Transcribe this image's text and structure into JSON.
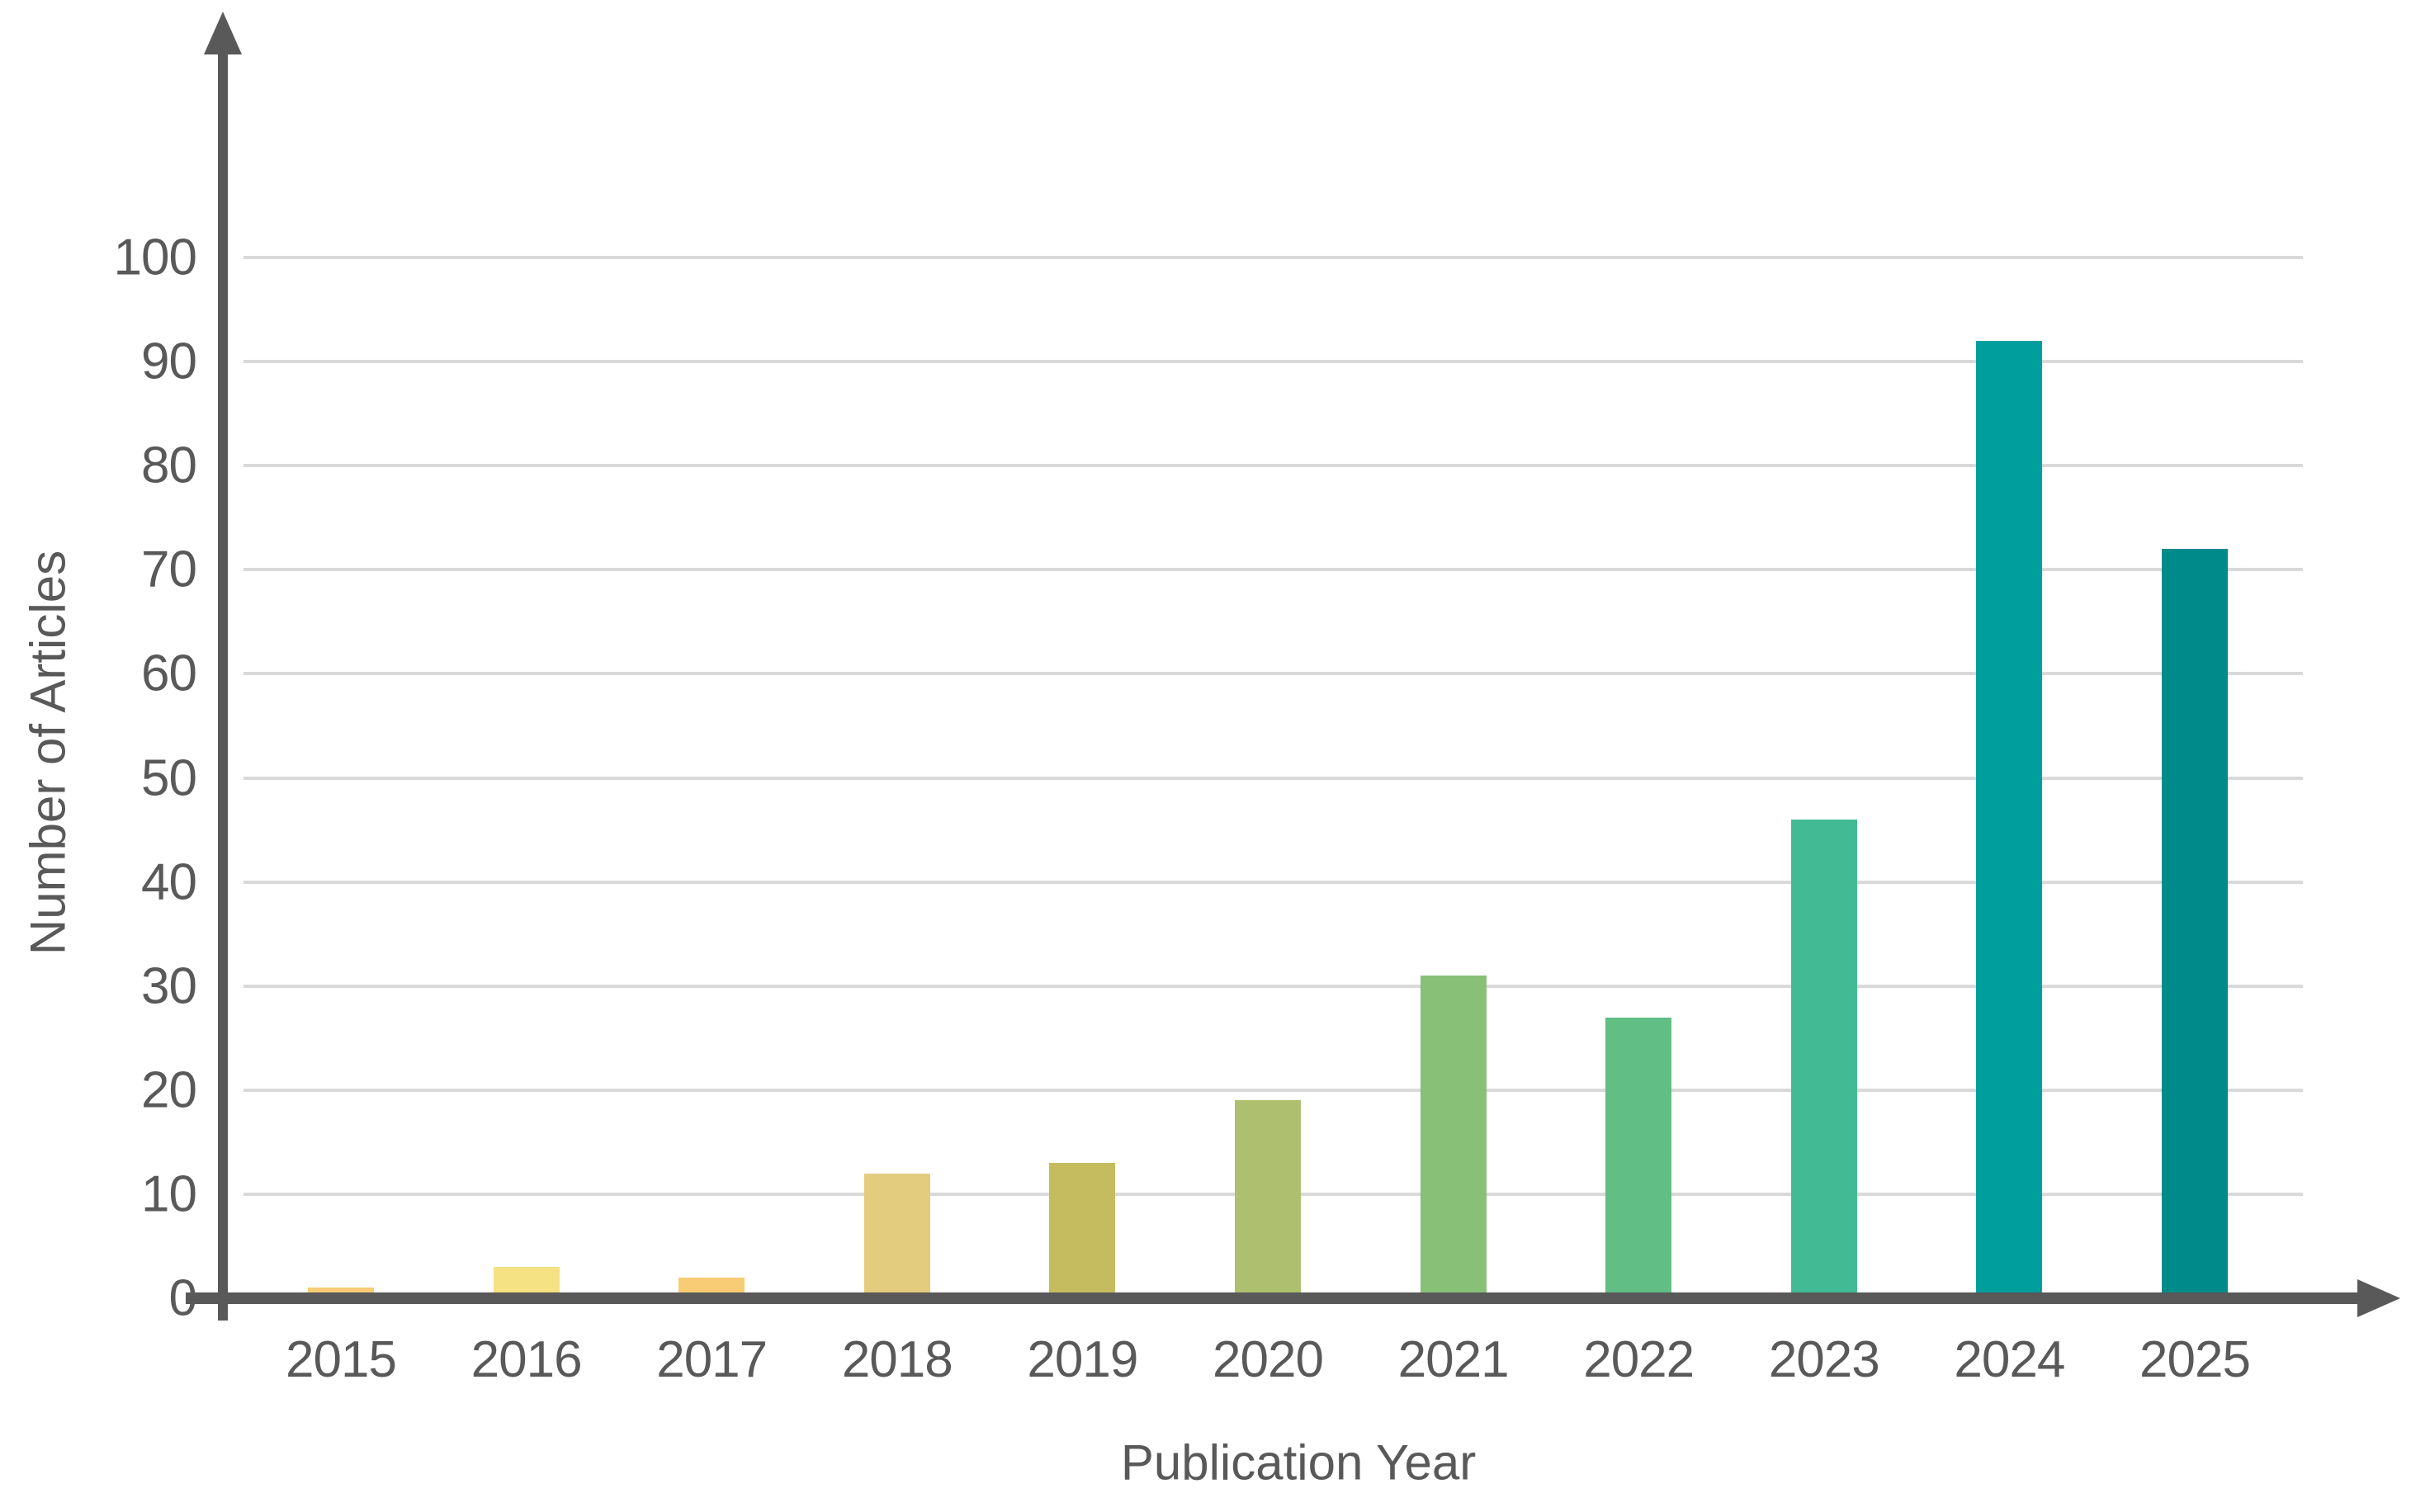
{
  "chart_data": {
    "type": "bar",
    "categories": [
      "2015",
      "2016",
      "2017",
      "2018",
      "2019",
      "2020",
      "2021",
      "2022",
      "2023",
      "2024",
      "2025"
    ],
    "values": [
      1,
      3,
      2,
      12,
      13,
      19,
      31,
      27,
      46,
      92,
      72
    ],
    "bar_colors": [
      "#F8CD76",
      "#F5E282",
      "#F8CC74",
      "#E4CC7E",
      "#C5BC60",
      "#AEC06F",
      "#88C078",
      "#61BE85",
      "#42BB94",
      "#009E9D",
      "#008B8B"
    ],
    "xlabel": "Publication Year",
    "ylabel": "Number of Articles",
    "ylim": [
      0,
      100
    ],
    "yticks": [
      0,
      10,
      20,
      30,
      40,
      50,
      60,
      70,
      80,
      90,
      100
    ],
    "grid": "horizontal-only",
    "legend": "none",
    "palette": {
      "axis": "#595959",
      "gridline": "#D9D9D9",
      "label_text": "#595959",
      "background": "#FFFFFF"
    }
  }
}
